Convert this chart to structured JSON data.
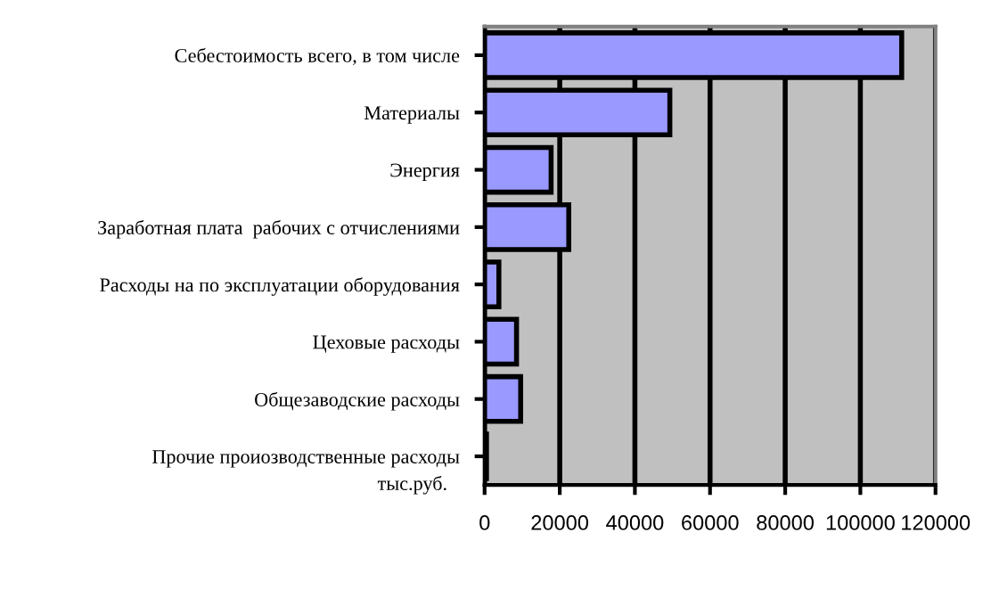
{
  "chart_data": {
    "type": "bar",
    "orientation": "horizontal",
    "categories": [
      "Себестоимость всего, в том числе",
      "Материалы",
      "Энергия",
      "Заработная плата  рабочих с отчислениями",
      "Расходы на по эксплуатации оборудования",
      "Цеховые расходы",
      "Общезаводские расходы",
      "Прочие проиозводственные расходы"
    ],
    "values": [
      111000,
      49300,
      17700,
      22400,
      3800,
      8500,
      9600,
      500
    ],
    "color": "#9999ff",
    "xlabel": "тыс.руб.",
    "xlim": [
      0,
      120000
    ],
    "xticks": [
      0,
      20000,
      40000,
      60000,
      80000,
      100000,
      120000
    ],
    "grid": "x",
    "legend": false
  }
}
